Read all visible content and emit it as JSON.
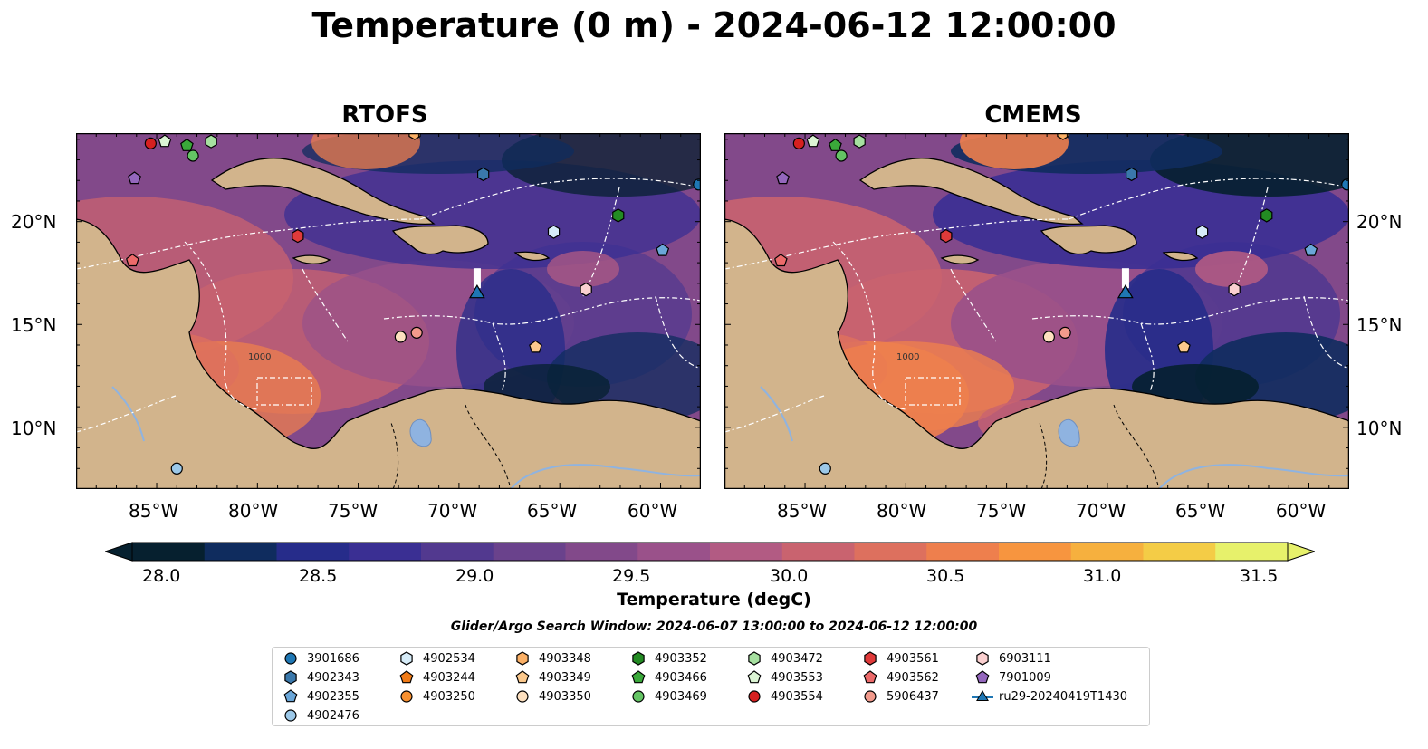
{
  "title": "Temperature (0 m) - 2024-06-12 12:00:00",
  "panels": [
    {
      "title": "RTOFS",
      "variant": "rtofs"
    },
    {
      "title": "CMEMS",
      "variant": "cmems"
    }
  ],
  "axes": {
    "lon_ticks": [
      "85°W",
      "80°W",
      "75°W",
      "70°W",
      "65°W",
      "60°W"
    ],
    "lat_ticks": [
      "20°N",
      "15°N",
      "10°N"
    ],
    "extent": {
      "lon": [
        -89,
        -58
      ],
      "lat": [
        7,
        24.3
      ]
    }
  },
  "colorbar": {
    "label": "Temperature (degC)",
    "ticks": [
      "28.0",
      "28.5",
      "29.0",
      "29.5",
      "30.0",
      "30.5",
      "31.0",
      "31.5"
    ],
    "range": [
      28.0,
      31.5
    ],
    "colors": [
      "#06202f",
      "#0f2c5e",
      "#262c8a",
      "#3a2f93",
      "#52398f",
      "#6a428c",
      "#82498a",
      "#9a518a",
      "#b25b83",
      "#c9636f",
      "#dd705e",
      "#ee7f4d",
      "#f7953f",
      "#f6b03e",
      "#f4cc46",
      "#e7f16b"
    ]
  },
  "search_window": "Glider/Argo Search Window: 2024-06-07 13:00:00 to 2024-06-12 12:00:00",
  "legend": [
    {
      "label": "3901686",
      "marker": "circle",
      "color": "#1f77b4"
    },
    {
      "label": "4902343",
      "marker": "hexagon",
      "color": "#3a78ab"
    },
    {
      "label": "4902355",
      "marker": "pentagon",
      "color": "#6aa6d8"
    },
    {
      "label": "4902476",
      "marker": "circle",
      "color": "#9cc8e8"
    },
    {
      "label": "4902534",
      "marker": "hexagon",
      "color": "#d6ecf8"
    },
    {
      "label": "4903244",
      "marker": "pentagon",
      "color": "#f07a16"
    },
    {
      "label": "4903250",
      "marker": "circle",
      "color": "#f79030"
    },
    {
      "label": "4903348",
      "marker": "hexagon",
      "color": "#fbb066"
    },
    {
      "label": "4903349",
      "marker": "pentagon",
      "color": "#fbc88c"
    },
    {
      "label": "4903350",
      "marker": "circle",
      "color": "#fde0bf"
    },
    {
      "label": "4903352",
      "marker": "hexagon",
      "color": "#238b23"
    },
    {
      "label": "4903466",
      "marker": "pentagon",
      "color": "#3aa83a"
    },
    {
      "label": "4903469",
      "marker": "circle",
      "color": "#64c464"
    },
    {
      "label": "4903472",
      "marker": "hexagon",
      "color": "#a6e0a0"
    },
    {
      "label": "4903553",
      "marker": "pentagon",
      "color": "#dcf5d4"
    },
    {
      "label": "4903554",
      "marker": "circle",
      "color": "#d62020"
    },
    {
      "label": "4903561",
      "marker": "hexagon",
      "color": "#e03a3a"
    },
    {
      "label": "4903562",
      "marker": "pentagon",
      "color": "#ec6a6a"
    },
    {
      "label": "5906437",
      "marker": "circle",
      "color": "#f29a8c"
    },
    {
      "label": "6903111",
      "marker": "hexagon",
      "color": "#fbd0d0"
    },
    {
      "label": "7901009",
      "marker": "pentagon",
      "color": "#9467bd"
    },
    {
      "label": "ru29-20240419T1430",
      "marker": "triangle-line",
      "color": "#1f77b4"
    }
  ],
  "floats": [
    {
      "id": "4903554",
      "lon": -85.3,
      "lat": 23.8
    },
    {
      "id": "4903553",
      "lon": -84.6,
      "lat": 23.9
    },
    {
      "id": "4903466",
      "lon": -83.5,
      "lat": 23.7
    },
    {
      "id": "4903472",
      "lon": -82.3,
      "lat": 23.9
    },
    {
      "id": "4903469",
      "lon": -83.2,
      "lat": 23.2
    },
    {
      "id": "7901009",
      "lon": -86.1,
      "lat": 22.1
    },
    {
      "id": "4903348",
      "lon": -72.2,
      "lat": 24.3
    },
    {
      "id": "4902343",
      "lon": -68.8,
      "lat": 22.3
    },
    {
      "id": "3901686",
      "lon": -58.1,
      "lat": 21.8
    },
    {
      "id": "4903352",
      "lon": -62.1,
      "lat": 20.3
    },
    {
      "id": "4903561",
      "lon": -78.0,
      "lat": 19.3
    },
    {
      "id": "4902534",
      "lon": -65.3,
      "lat": 19.5
    },
    {
      "id": "4902355",
      "lon": -59.9,
      "lat": 18.6
    },
    {
      "id": "4903562",
      "lon": -86.2,
      "lat": 18.1
    },
    {
      "id": "6903111",
      "lon": -63.7,
      "lat": 16.7
    },
    {
      "id": "4903350",
      "lon": -72.9,
      "lat": 14.4
    },
    {
      "id": "5906437",
      "lon": -72.1,
      "lat": 14.6
    },
    {
      "id": "4903349",
      "lon": -66.2,
      "lat": 13.9
    },
    {
      "id": "4902476",
      "lon": -84.0,
      "lat": 8.0
    }
  ],
  "glider": {
    "id": "ru29-20240419T1430",
    "lon": -69.1,
    "lat": 16.5
  },
  "depth_label": "1000"
}
